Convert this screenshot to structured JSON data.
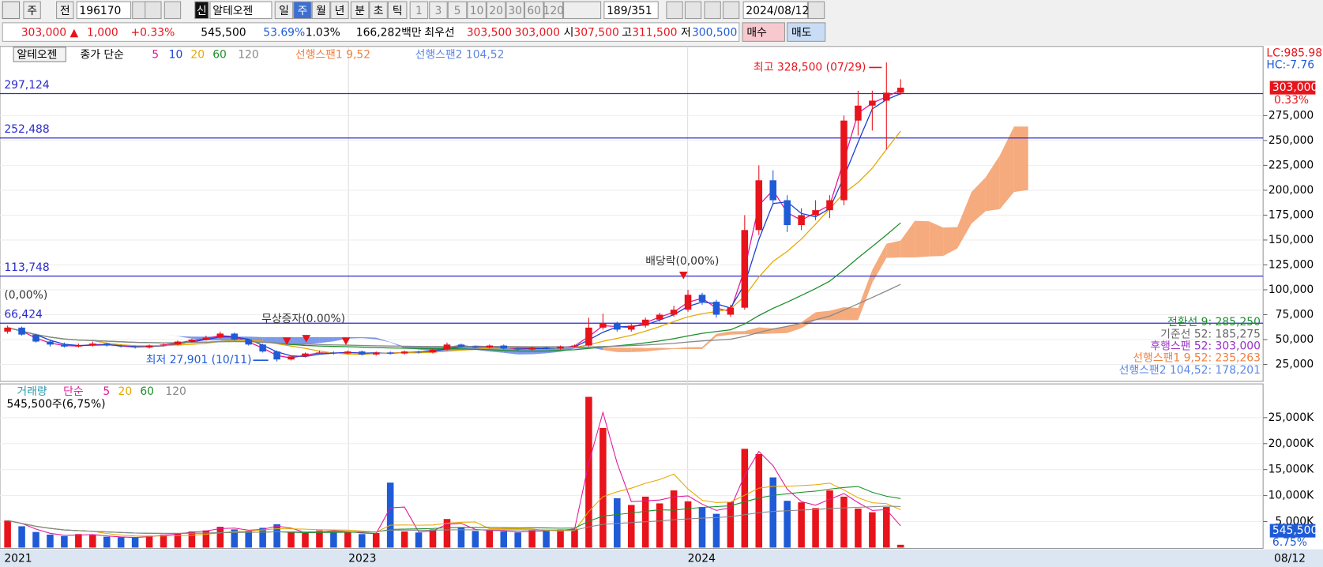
{
  "toolbar": {
    "row1": [
      "주",
      "전",
      "196170",
      "신",
      "알테오젠",
      "일",
      "주",
      "월",
      "년",
      "분",
      "초",
      "틱",
      "1",
      "3",
      "5",
      "10",
      "20",
      "30",
      "60",
      "120",
      "189/351",
      "2024/08/12"
    ],
    "row2": [
      "303,000 ▲",
      "1,000",
      "+0.33%",
      "545,500",
      "53.69%",
      "1.03%",
      "166,282백만",
      "최우선",
      "303,500",
      "303,000",
      "시",
      "307,500",
      "고",
      "311,500",
      "저",
      "300,500",
      "매수",
      "매도"
    ]
  },
  "price_legend": [
    "알테오젠",
    "종가 단순",
    "5",
    "10",
    "20",
    "60",
    "120",
    "선행스팬1 9,52",
    "선행스팬2 104,52"
  ],
  "volume_legend": [
    "거래량",
    "단순",
    "5",
    "20",
    "60",
    "120"
  ],
  "volume_note": "545,500주(6,75%)",
  "price_axis": {
    "ylim": [
      8000,
      344500
    ],
    "yticks": [
      {
        "value": 25000,
        "label": "25,000"
      },
      {
        "value": 50000,
        "label": "50,000"
      },
      {
        "value": 75000,
        "label": "75,000"
      },
      {
        "value": 100000,
        "label": "100,000"
      },
      {
        "value": 125000,
        "label": "125,000"
      },
      {
        "value": 150000,
        "label": "150,000"
      },
      {
        "value": 175000,
        "label": "175,000"
      },
      {
        "value": 200000,
        "label": "200,000"
      },
      {
        "value": 225000,
        "label": "225,000"
      },
      {
        "value": 250000,
        "label": "250,000"
      },
      {
        "value": 275000,
        "label": "275,000"
      }
    ],
    "lc": "LC:985.98",
    "hc": "HC:-7.76",
    "current": {
      "value": 303000,
      "label": "303,000"
    },
    "change": "0.33%"
  },
  "volume_axis": {
    "ylim": [
      0,
      31000
    ],
    "yticks": [
      {
        "value": 5000,
        "label": "5,000K"
      },
      {
        "value": 10000,
        "label": "10,000K"
      },
      {
        "value": 15000,
        "label": "15,000K"
      },
      {
        "value": 20000,
        "label": "20,000K"
      },
      {
        "value": 25000,
        "label": "25,000K"
      }
    ],
    "current": "545,500",
    "ratio": "6.75%"
  },
  "hlines": [
    {
      "value": 297124,
      "label": "297,124"
    },
    {
      "value": 252488,
      "label": "252,488"
    },
    {
      "value": 113748,
      "label": "113,748"
    },
    {
      "value": 66424,
      "label": "66,424"
    }
  ],
  "indicator_labels": [
    "전환선 9: 285,250",
    "기준선 52: 185,275",
    "후행스팬 52: 303,000",
    "선행스팬1 9,52: 235,263",
    "선행스팬2 104,52: 178,201"
  ],
  "annotations": {
    "high": "최고 328,500 (07/29)",
    "low": "최저 27,901 (10/11)",
    "dividend": "배당락(0,00%)",
    "left": "(0,00%)",
    "bonus": "무상증자(0.00%)"
  },
  "dates": [
    "2021",
    "2023",
    "2024",
    "08/12"
  ],
  "candles": [
    [
      58000,
      64000,
      56000,
      62000
    ],
    [
      62000,
      63000,
      54000,
      55000
    ],
    [
      55000,
      56000,
      47000,
      48000
    ],
    [
      48000,
      49000,
      43000,
      45000
    ],
    [
      45000,
      47000,
      42000,
      43000
    ],
    [
      43000,
      46000,
      42000,
      44000
    ],
    [
      44000,
      48000,
      43000,
      46000
    ],
    [
      46000,
      47000,
      43000,
      44000
    ],
    [
      44000,
      45000,
      42000,
      43000
    ],
    [
      43000,
      44000,
      41000,
      42000
    ],
    [
      42000,
      45000,
      41000,
      44000
    ],
    [
      44000,
      46000,
      43000,
      45000
    ],
    [
      45000,
      49000,
      44000,
      48000
    ],
    [
      48000,
      51000,
      47000,
      50000
    ],
    [
      50000,
      54000,
      49000,
      52000
    ],
    [
      52000,
      58000,
      51000,
      56000
    ],
    [
      56000,
      57000,
      49000,
      50000
    ],
    [
      50000,
      51000,
      44000,
      45000
    ],
    [
      45000,
      46000,
      37000,
      38000
    ],
    [
      38000,
      39000,
      27901,
      30000
    ],
    [
      30000,
      34000,
      29000,
      33000
    ],
    [
      33000,
      37000,
      32000,
      36000
    ],
    [
      36000,
      39000,
      35000,
      37000
    ],
    [
      37000,
      38000,
      35000,
      36000
    ],
    [
      36000,
      39000,
      35000,
      38000
    ],
    [
      38000,
      39000,
      34000,
      35000
    ],
    [
      35000,
      38000,
      34000,
      37000
    ],
    [
      37000,
      38000,
      35000,
      36000
    ],
    [
      36000,
      39000,
      35000,
      38000
    ],
    [
      38000,
      39000,
      36000,
      37000
    ],
    [
      37000,
      41000,
      36000,
      40000
    ],
    [
      40000,
      47000,
      39000,
      45000
    ],
    [
      45000,
      46000,
      42000,
      43000
    ],
    [
      43000,
      44000,
      41000,
      42000
    ],
    [
      42000,
      45000,
      41000,
      44000
    ],
    [
      44000,
      45000,
      40000,
      41000
    ],
    [
      41000,
      42000,
      39000,
      40000
    ],
    [
      40000,
      43000,
      39000,
      42000
    ],
    [
      42000,
      43000,
      40000,
      41000
    ],
    [
      41000,
      44000,
      40000,
      43000
    ],
    [
      43000,
      45000,
      42000,
      44000
    ],
    [
      44000,
      72000,
      43000,
      62000
    ],
    [
      62000,
      76000,
      60000,
      66000
    ],
    [
      66000,
      68000,
      58000,
      60000
    ],
    [
      60000,
      66000,
      58000,
      64000
    ],
    [
      64000,
      72000,
      62000,
      70000
    ],
    [
      70000,
      77000,
      68000,
      75000
    ],
    [
      75000,
      84000,
      73000,
      80000
    ],
    [
      80000,
      100000,
      78000,
      95000
    ],
    [
      95000,
      97000,
      85000,
      88000
    ],
    [
      88000,
      90000,
      72000,
      75000
    ],
    [
      75000,
      85000,
      73000,
      82000
    ],
    [
      82000,
      175000,
      80000,
      160000
    ],
    [
      160000,
      225000,
      155000,
      210000
    ],
    [
      210000,
      220000,
      185000,
      190000
    ],
    [
      190000,
      195000,
      158000,
      165000
    ],
    [
      165000,
      182000,
      160000,
      175000
    ],
    [
      175000,
      190000,
      170000,
      180000
    ],
    [
      180000,
      195000,
      172000,
      190000
    ],
    [
      190000,
      275000,
      185000,
      270000
    ],
    [
      270000,
      300000,
      255000,
      285000
    ],
    [
      285000,
      300000,
      260000,
      290000
    ],
    [
      290000,
      328500,
      241000,
      298000
    ],
    [
      298000,
      311500,
      296000,
      303000
    ]
  ],
  "volumes": [
    5200,
    4100,
    3000,
    2500,
    2200,
    2600,
    2400,
    2100,
    2000,
    1900,
    2300,
    2500,
    2800,
    3100,
    3300,
    4000,
    3500,
    3200,
    3800,
    4500,
    3000,
    2800,
    3300,
    3200,
    3000,
    2600,
    2800,
    12500,
    3100,
    2900,
    3500,
    5500,
    3800,
    3200,
    3400,
    3100,
    2900,
    3300,
    3200,
    3500,
    3600,
    29000,
    23000,
    9500,
    8200,
    9800,
    8500,
    11000,
    8900,
    7800,
    6500,
    8800,
    19000,
    18000,
    13500,
    9000,
    8700,
    7600,
    11000,
    9800,
    7500,
    6800,
    7800,
    545.5
  ]
}
